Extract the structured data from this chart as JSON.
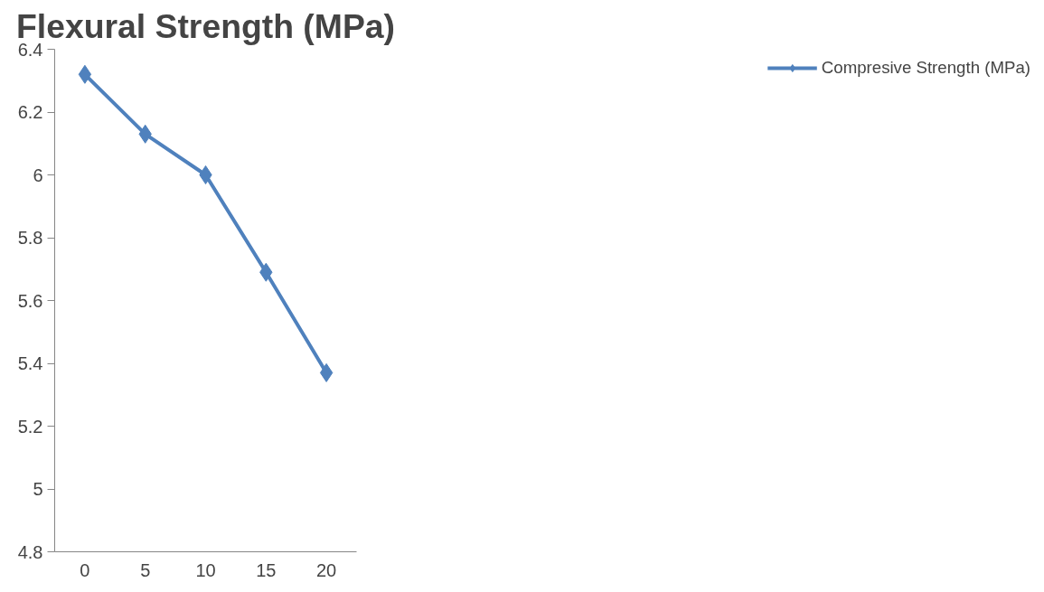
{
  "chart_data": {
    "type": "line",
    "title": "Flexural Strength (MPa)",
    "categories": [
      "0",
      "5",
      "10",
      "15",
      "20"
    ],
    "series": [
      {
        "name": "Compresive Strength (MPa)",
        "color": "#4f81bd",
        "values": [
          6.32,
          6.13,
          6.0,
          5.69,
          5.37
        ]
      }
    ],
    "ylim": [
      4.8,
      6.4
    ],
    "yticks": [
      4.8,
      5,
      5.2,
      5.4,
      5.6,
      5.8,
      6,
      6.2,
      6.4
    ],
    "grid": false,
    "legend": "right",
    "marker": "diamond",
    "line_style": "solid"
  }
}
